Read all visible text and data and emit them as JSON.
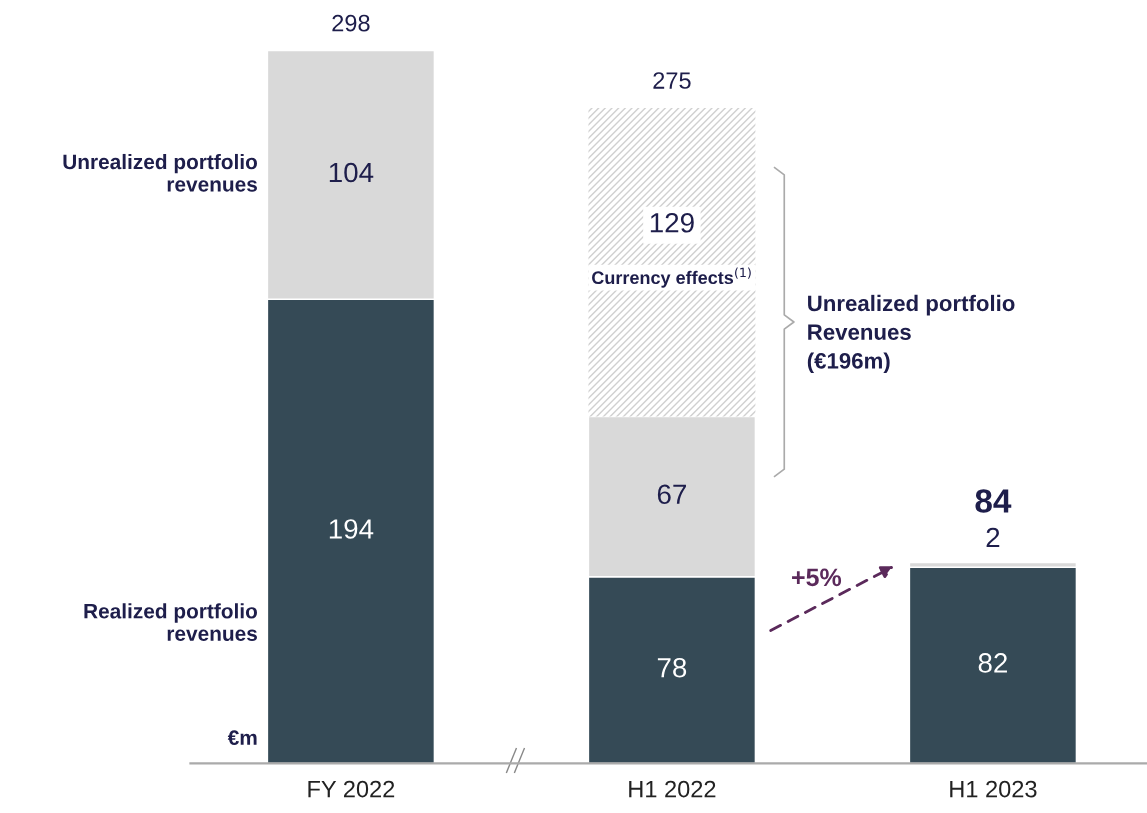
{
  "chart_data": {
    "type": "bar",
    "stacked": true,
    "categories": [
      "FY 2022",
      "H1 2022",
      "H1 2023"
    ],
    "series": [
      {
        "name": "Realized portfolio revenues",
        "color": "#354a56",
        "values": [
          194,
          78,
          82
        ]
      },
      {
        "name": "Unrealized portfolio revenues",
        "color": "#d9d9d9",
        "values": [
          104,
          67,
          2
        ]
      },
      {
        "color": "#d0d0d0",
        "values": [
          null,
          129,
          null
        ]
      }
    ],
    "totals": [
      "298",
      "275",
      "84"
    ],
    "data_labels": true,
    "tick_labels": "x",
    "grid": false,
    "legend": false,
    "annotations": [
      "€m",
      "Currency effects$^{(1)}$",
      "+5%",
      "Unrealized portfolio\nRevenues\n(€196m)"
    ]
  }
}
